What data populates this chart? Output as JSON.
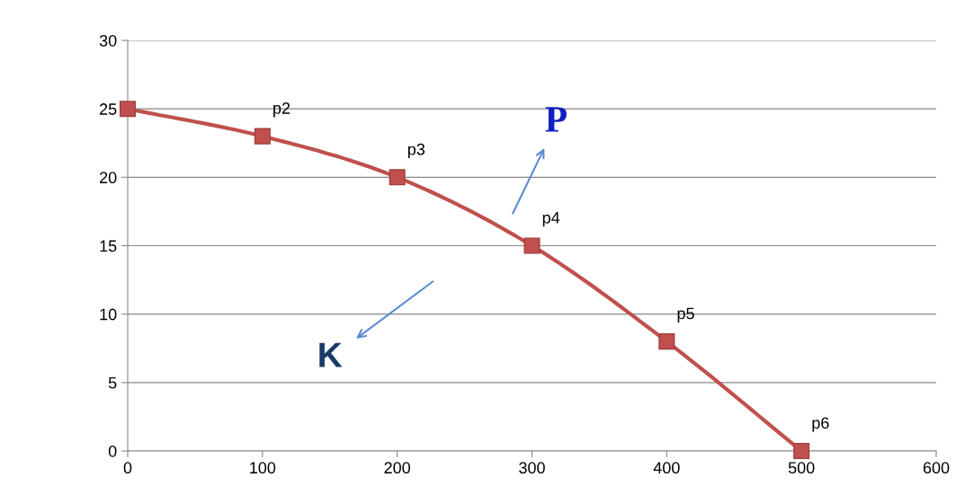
{
  "chart_data": {
    "type": "line",
    "x": [
      0,
      100,
      200,
      300,
      400,
      500
    ],
    "series": [
      {
        "color": "#c0504d",
        "values": [
          25,
          23,
          20,
          15,
          8,
          0
        ]
      }
    ],
    "xlim": [
      0,
      600
    ],
    "xticks": [
      0,
      100,
      200,
      300,
      400,
      500,
      600
    ],
    "ylim": [
      0,
      30
    ],
    "yticks": [
      0,
      5,
      10,
      15,
      20,
      25,
      30
    ],
    "grid": "y",
    "marker": "square",
    "line_style": "solid",
    "annotations": [
      {
        "text": "p2",
        "x": 100,
        "y": 23
      },
      {
        "text": "p3",
        "x": 200,
        "y": 20
      },
      {
        "text": "p4",
        "x": 300,
        "y": 15
      },
      {
        "text": "p5",
        "x": 400,
        "y": 8
      },
      {
        "text": "p6",
        "x": 500,
        "y": 0
      },
      "P",
      "K"
    ]
  }
}
